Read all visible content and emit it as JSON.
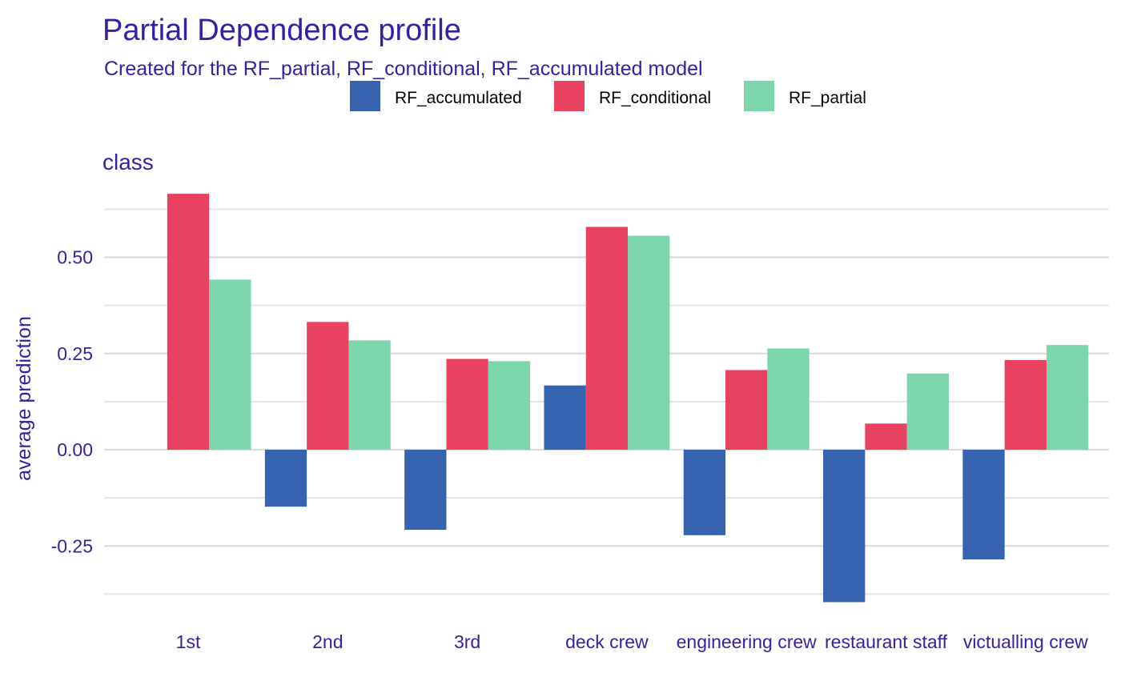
{
  "chart_data": {
    "type": "bar",
    "title": "Partial Dependence profile",
    "subtitle": "Created for the RF_partial, RF_conditional, RF_accumulated model",
    "panel_label": "class",
    "xlabel": "",
    "ylabel": "average prediction",
    "ylim": [
      -0.42,
      0.7
    ],
    "yticks": [
      -0.25,
      0.0,
      0.25,
      0.5
    ],
    "ytick_labels": [
      "-0.25",
      "0.00",
      "0.25",
      "0.50"
    ],
    "grid": true,
    "legend_position": "top",
    "categories": [
      "1st",
      "2nd",
      "3rd",
      "deck crew",
      "engineering crew",
      "restaurant staff",
      "victualling crew"
    ],
    "series": [
      {
        "name": "RF_accumulated",
        "color": "#3563b0",
        "values": [
          0.0,
          -0.148,
          -0.208,
          0.167,
          -0.222,
          -0.396,
          -0.285
        ]
      },
      {
        "name": "RF_conditional",
        "color": "#e94160",
        "values": [
          0.665,
          0.332,
          0.236,
          0.579,
          0.207,
          0.068,
          0.233
        ]
      },
      {
        "name": "RF_partial",
        "color": "#7dd5ac",
        "values": [
          0.442,
          0.284,
          0.23,
          0.556,
          0.263,
          0.198,
          0.272
        ]
      }
    ]
  }
}
